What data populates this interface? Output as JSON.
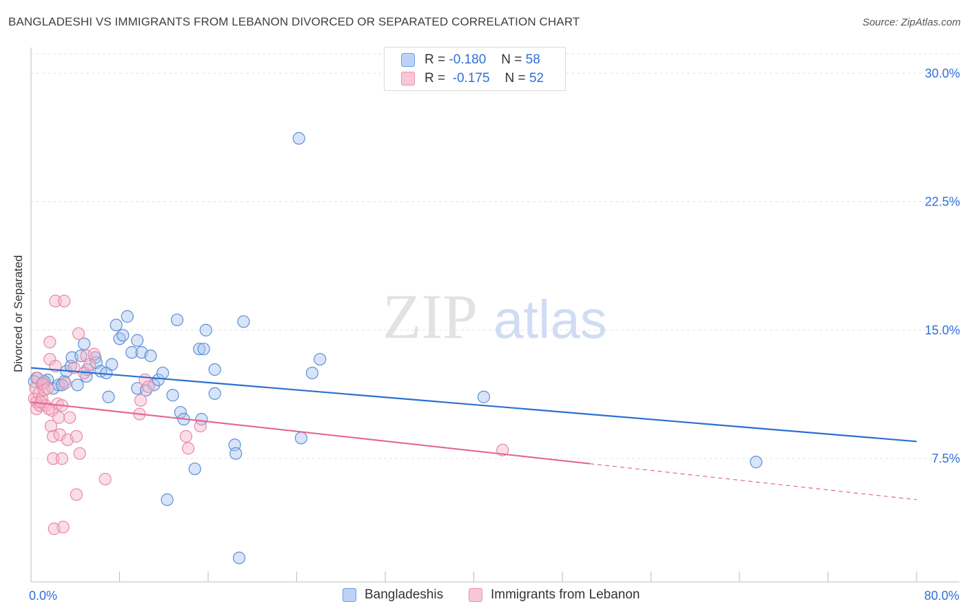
{
  "title": "BANGLADESHI VS IMMIGRANTS FROM LEBANON DIVORCED OR SEPARATED CORRELATION CHART",
  "source": "Source: ZipAtlas.com",
  "watermark": {
    "zip": "ZIP",
    "atlas": "atlas"
  },
  "legend": {
    "rows": [
      {
        "r_label": "R =",
        "r_value": "-0.180",
        "n_label": "N =",
        "n_value": "58"
      },
      {
        "r_label": "R =",
        "r_value": "-0.175",
        "n_label": "N =",
        "n_value": "52"
      }
    ]
  },
  "colors": {
    "blue_fill": "#a9c4f0",
    "blue_stroke": "#5b8fd6",
    "blue_line": "#2a6fd1",
    "pink_fill": "#f5b6c9",
    "pink_stroke": "#e887a6",
    "pink_line": "#e5668f",
    "tick_label": "#2f6fdb",
    "grid": "#e3e3e3"
  },
  "chart_data": {
    "type": "scatter",
    "title": "BANGLADESHI VS IMMIGRANTS FROM LEBANON DIVORCED OR SEPARATED CORRELATION CHART",
    "xlabel": "",
    "ylabel": "Divorced or Separated",
    "xlim": [
      0,
      80
    ],
    "ylim": [
      0.3,
      31.5
    ],
    "x_tick_labels": [
      {
        "x": 0,
        "label": "0.0%"
      },
      {
        "x": 80,
        "label": "80.0%"
      }
    ],
    "y_ticks": [
      {
        "y": 7.5,
        "label": "7.5%"
      },
      {
        "y": 15.0,
        "label": "15.0%"
      },
      {
        "y": 22.5,
        "label": "22.5%"
      },
      {
        "y": 30.0,
        "label": "30.0%"
      }
    ],
    "x_minor_ticks": [
      0,
      8,
      16,
      24,
      32,
      40,
      48,
      56,
      64,
      72,
      80
    ],
    "series": [
      {
        "name": "Bangladeshis",
        "color": "blue",
        "points": [
          [
            0.5,
            12.2
          ],
          [
            1.0,
            11.9
          ],
          [
            1.5,
            12.1
          ],
          [
            2.0,
            11.6
          ],
          [
            2.5,
            11.8
          ],
          [
            3.0,
            12.0
          ],
          [
            2.8,
            11.8
          ],
          [
            3.2,
            12.6
          ],
          [
            3.6,
            12.9
          ],
          [
            3.7,
            13.4
          ],
          [
            4.2,
            11.8
          ],
          [
            4.5,
            13.5
          ],
          [
            4.8,
            14.2
          ],
          [
            5.0,
            12.3
          ],
          [
            5.1,
            12.7
          ],
          [
            5.8,
            13.4
          ],
          [
            5.9,
            13.1
          ],
          [
            6.3,
            12.6
          ],
          [
            6.8,
            12.5
          ],
          [
            7.0,
            11.1
          ],
          [
            7.3,
            13.0
          ],
          [
            7.7,
            15.3
          ],
          [
            8.0,
            14.5
          ],
          [
            8.3,
            14.7
          ],
          [
            8.7,
            15.8
          ],
          [
            9.1,
            13.7
          ],
          [
            9.6,
            14.4
          ],
          [
            9.6,
            11.6
          ],
          [
            10.0,
            13.7
          ],
          [
            10.4,
            11.5
          ],
          [
            10.8,
            13.5
          ],
          [
            11.1,
            11.8
          ],
          [
            11.5,
            12.1
          ],
          [
            11.9,
            12.5
          ],
          [
            12.3,
            5.1
          ],
          [
            12.8,
            11.2
          ],
          [
            13.2,
            15.6
          ],
          [
            13.5,
            10.2
          ],
          [
            13.8,
            9.8
          ],
          [
            14.8,
            6.9
          ],
          [
            15.2,
            13.9
          ],
          [
            15.4,
            9.8
          ],
          [
            15.6,
            13.9
          ],
          [
            15.8,
            15.0
          ],
          [
            16.6,
            12.7
          ],
          [
            16.6,
            11.3
          ],
          [
            18.4,
            8.3
          ],
          [
            18.5,
            7.8
          ],
          [
            18.8,
            1.7
          ],
          [
            19.2,
            15.5
          ],
          [
            24.2,
            26.2
          ],
          [
            24.4,
            8.7
          ],
          [
            25.4,
            12.5
          ],
          [
            26.1,
            13.3
          ],
          [
            40.9,
            11.1
          ],
          [
            65.5,
            7.3
          ],
          [
            0.3,
            12.0
          ],
          [
            1.2,
            12.0
          ]
        ],
        "trend": {
          "x": [
            0,
            80
          ],
          "y": [
            12.8,
            8.5
          ],
          "dashed_from": null
        }
      },
      {
        "name": "Immigrants from Lebanon",
        "color": "pink",
        "points": [
          [
            0.3,
            11.0
          ],
          [
            0.4,
            11.6
          ],
          [
            0.5,
            10.8
          ],
          [
            0.5,
            10.4
          ],
          [
            0.6,
            12.2
          ],
          [
            0.7,
            11.3
          ],
          [
            0.8,
            10.6
          ],
          [
            1.0,
            11.8
          ],
          [
            1.0,
            11.0
          ],
          [
            1.1,
            11.9
          ],
          [
            1.2,
            11.5
          ],
          [
            1.3,
            10.6
          ],
          [
            1.5,
            11.6
          ],
          [
            1.7,
            14.3
          ],
          [
            1.7,
            13.3
          ],
          [
            1.8,
            9.4
          ],
          [
            1.9,
            10.3
          ],
          [
            2.0,
            7.5
          ],
          [
            2.0,
            8.8
          ],
          [
            2.1,
            3.4
          ],
          [
            2.2,
            12.9
          ],
          [
            2.4,
            10.7
          ],
          [
            2.5,
            9.9
          ],
          [
            2.6,
            8.9
          ],
          [
            2.8,
            7.5
          ],
          [
            2.8,
            10.6
          ],
          [
            2.9,
            3.5
          ],
          [
            2.2,
            16.7
          ],
          [
            3.0,
            16.7
          ],
          [
            3.1,
            11.9
          ],
          [
            3.3,
            8.6
          ],
          [
            3.5,
            9.9
          ],
          [
            3.9,
            12.8
          ],
          [
            4.1,
            5.4
          ],
          [
            4.1,
            8.8
          ],
          [
            4.3,
            14.8
          ],
          [
            4.4,
            7.8
          ],
          [
            4.8,
            12.5
          ],
          [
            5.0,
            13.5
          ],
          [
            5.3,
            13.0
          ],
          [
            5.7,
            13.6
          ],
          [
            6.7,
            6.3
          ],
          [
            9.8,
            10.1
          ],
          [
            9.9,
            10.9
          ],
          [
            10.3,
            12.1
          ],
          [
            10.6,
            11.7
          ],
          [
            14.0,
            8.8
          ],
          [
            14.2,
            8.1
          ],
          [
            15.3,
            9.4
          ],
          [
            42.6,
            8.0
          ],
          [
            0.9,
            10.8
          ],
          [
            1.6,
            10.4
          ]
        ],
        "trend": {
          "x": [
            0,
            80
          ],
          "y": [
            10.8,
            5.1
          ],
          "dashed_from": 50.5
        }
      }
    ]
  },
  "bottom_legend": {
    "items": [
      "Bangladeshis",
      "Immigrants from Lebanon"
    ]
  }
}
